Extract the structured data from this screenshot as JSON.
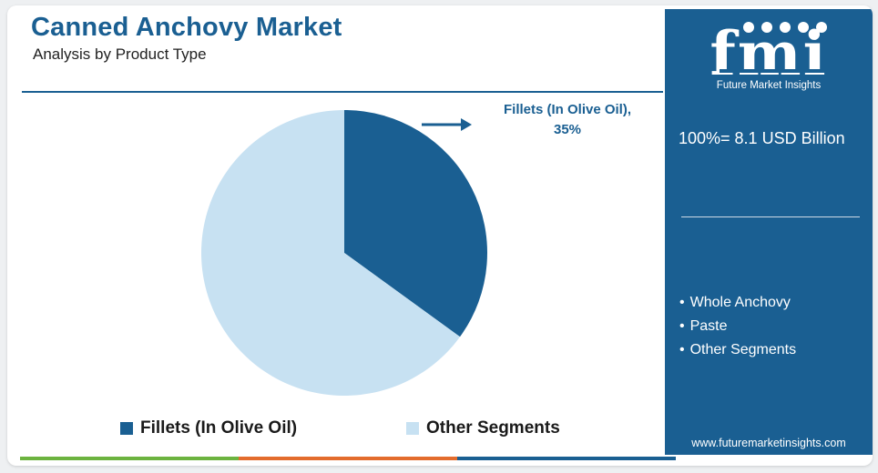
{
  "header": {
    "title": "Canned Anchovy Market",
    "subtitle": "Analysis by Product Type"
  },
  "chart_data": {
    "type": "pie",
    "slices": [
      {
        "name": "Fillets (In Olive Oil)",
        "value": 35,
        "color": "#1a5f92"
      },
      {
        "name": "Other Segments",
        "value": 65,
        "color": "#c7e1f2"
      }
    ],
    "callout": "Fillets (In Olive Oil), 35%",
    "legend": [
      "Fillets (In Olive Oil)",
      "Other Segments"
    ],
    "legend_position": "bottom"
  },
  "sidebar": {
    "brand_logo": "fmi",
    "brand_name": "Future Market Insights",
    "total_label": "100%= 8.1 USD Billion",
    "other_segments": [
      "Whole Anchovy",
      "Paste",
      "Other Segments"
    ],
    "website": "www.futuremarketinsights.com"
  },
  "colors": {
    "primary": "#1a5f92",
    "light": "#c7e1f2",
    "bottom_bar": [
      "#6cb33f",
      "#e36c2d",
      "#1a5f92"
    ]
  }
}
